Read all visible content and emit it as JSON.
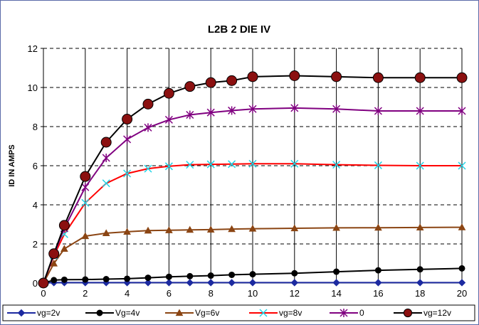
{
  "chart_data": {
    "type": "line",
    "title": "L2B 2 DIE IV",
    "xlabel": "",
    "ylabel": "ID IN AMPS",
    "xlim": [
      0,
      20
    ],
    "ylim": [
      0,
      12
    ],
    "x_ticks": [
      "0",
      "2",
      "4",
      "6",
      "8",
      "10",
      "12",
      "14",
      "16",
      "18",
      "20"
    ],
    "y_ticks": [
      "0",
      "2",
      "4",
      "6",
      "8",
      "10",
      "12"
    ],
    "grid": "vertical solid, horizontal dashed",
    "legend_position": "bottom",
    "x": [
      0,
      0.5,
      1,
      2,
      3,
      4,
      5,
      6,
      7,
      8,
      9,
      10,
      12,
      14,
      16,
      18,
      20
    ],
    "series": [
      {
        "name": "vg=2v",
        "color": "#1c2aa0",
        "marker": "diamond",
        "values": [
          0,
          0.02,
          0.02,
          0.02,
          0.02,
          0.02,
          0.02,
          0.02,
          0.02,
          0.02,
          0.02,
          0.02,
          0.02,
          0.02,
          0.02,
          0.02,
          0.02
        ]
      },
      {
        "name": "Vg=4v",
        "color": "#000000",
        "marker": "circle",
        "values": [
          0,
          0.15,
          0.17,
          0.18,
          0.2,
          0.22,
          0.27,
          0.32,
          0.35,
          0.38,
          0.42,
          0.45,
          0.5,
          0.58,
          0.65,
          0.7,
          0.75
        ]
      },
      {
        "name": "Vg=6v",
        "color": "#8b4513",
        "marker": "triangle",
        "values": [
          0,
          1.0,
          1.75,
          2.4,
          2.55,
          2.62,
          2.68,
          2.7,
          2.72,
          2.73,
          2.76,
          2.78,
          2.8,
          2.82,
          2.83,
          2.84,
          2.85
        ]
      },
      {
        "name": "vg=8v",
        "color": "#ff0000",
        "marker": "x",
        "values": [
          0,
          1.4,
          2.5,
          4.1,
          5.1,
          5.6,
          5.85,
          5.97,
          6.05,
          6.07,
          6.08,
          6.1,
          6.1,
          6.05,
          6.02,
          6.0,
          6.0
        ]
      },
      {
        "name": "0",
        "color": "#800080",
        "marker": "star",
        "values": [
          0,
          1.45,
          2.8,
          4.9,
          6.4,
          7.35,
          7.95,
          8.35,
          8.6,
          8.72,
          8.82,
          8.9,
          8.95,
          8.9,
          8.8,
          8.8,
          8.8
        ]
      },
      {
        "name": "vg=12v",
        "color": "#000000",
        "marker": "big-circle",
        "marker_fill": "#8b1010",
        "values": [
          0,
          1.5,
          2.95,
          5.45,
          7.2,
          8.38,
          9.15,
          9.7,
          10.05,
          10.25,
          10.35,
          10.55,
          10.6,
          10.55,
          10.5,
          10.5,
          10.5
        ]
      }
    ]
  }
}
